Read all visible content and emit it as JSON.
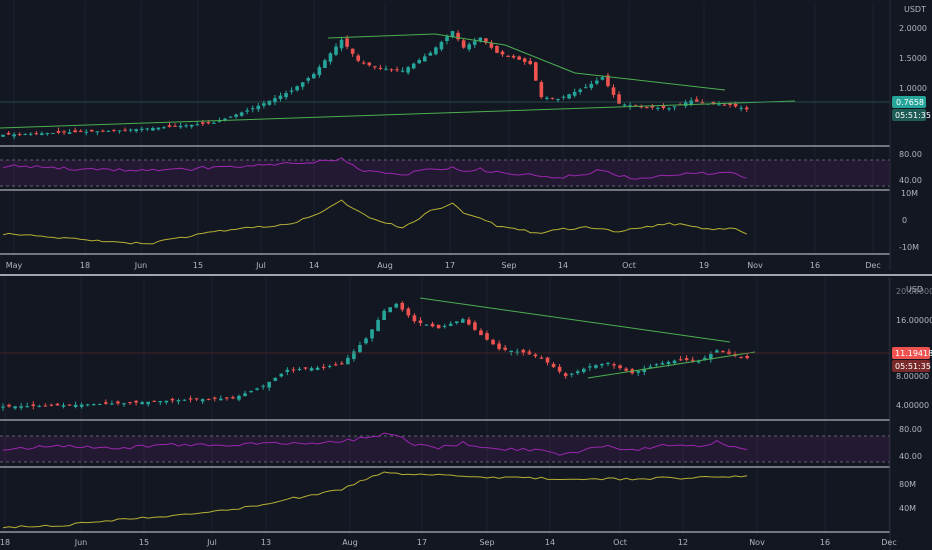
{
  "colors": {
    "background": "#131722",
    "up": "#26a69a",
    "down": "#ef5350",
    "trendline": "#4caf50",
    "rsi": "#9c27b0",
    "obv": "#b7b034",
    "divider": "#d1d4dc"
  },
  "chart_data": [
    {
      "type": "candlestick",
      "title": "",
      "currency": "USDT",
      "y_ticks": [
        "2.0000",
        "1.5000",
        "1.0000"
      ],
      "x_ticks": [
        "May",
        "18",
        "Jun",
        "15",
        "Jul",
        "14",
        "Aug",
        "17",
        "Sep",
        "14",
        "Oct",
        "19",
        "Nov",
        "16",
        "Dec"
      ],
      "last_price": "0.7658",
      "countdown": "05:51:35",
      "ylim": [
        0.3,
        2.3
      ],
      "close_path": [
        [
          0,
          0.38
        ],
        [
          10,
          0.41
        ],
        [
          20,
          0.44
        ],
        [
          30,
          0.5
        ],
        [
          38,
          0.56
        ],
        [
          45,
          0.78
        ],
        [
          52,
          1.05
        ],
        [
          56,
          1.3
        ],
        [
          61,
          1.82
        ],
        [
          64,
          1.5
        ],
        [
          67,
          1.4
        ],
        [
          72,
          1.35
        ],
        [
          77,
          1.62
        ],
        [
          81,
          1.95
        ],
        [
          83,
          1.7
        ],
        [
          86,
          1.85
        ],
        [
          89,
          1.62
        ],
        [
          92,
          1.55
        ],
        [
          95,
          1.45
        ],
        [
          97,
          0.95
        ],
        [
          100,
          0.92
        ],
        [
          105,
          1.1
        ],
        [
          108,
          1.25
        ],
        [
          111,
          0.85
        ],
        [
          115,
          0.8
        ],
        [
          120,
          0.78
        ],
        [
          124,
          0.9
        ],
        [
          127,
          0.85
        ],
        [
          131,
          0.83
        ],
        [
          134,
          0.7658
        ]
      ],
      "rsi": {
        "y_ticks": [
          "80.00",
          "40.00"
        ],
        "band": [
          30,
          70
        ],
        "path": [
          [
            0,
            62
          ],
          [
            10,
            58
          ],
          [
            20,
            55
          ],
          [
            30,
            54
          ],
          [
            38,
            60
          ],
          [
            45,
            62
          ],
          [
            52,
            66
          ],
          [
            56,
            68
          ],
          [
            61,
            75
          ],
          [
            64,
            55
          ],
          [
            67,
            50
          ],
          [
            72,
            47
          ],
          [
            77,
            55
          ],
          [
            81,
            60
          ],
          [
            83,
            52
          ],
          [
            86,
            57
          ],
          [
            89,
            50
          ],
          [
            92,
            48
          ],
          [
            95,
            46
          ],
          [
            97,
            42
          ],
          [
            100,
            41
          ],
          [
            105,
            48
          ],
          [
            108,
            55
          ],
          [
            111,
            43
          ],
          [
            115,
            41
          ],
          [
            120,
            44
          ],
          [
            124,
            52
          ],
          [
            127,
            49
          ],
          [
            131,
            50
          ],
          [
            134,
            42
          ]
        ]
      },
      "obv": {
        "y_ticks": [
          "10M",
          "0",
          "-10M"
        ],
        "path": [
          [
            0,
            -5
          ],
          [
            10,
            -7
          ],
          [
            20,
            -9
          ],
          [
            26,
            -10
          ],
          [
            30,
            -8
          ],
          [
            38,
            -4
          ],
          [
            45,
            -2
          ],
          [
            52,
            0
          ],
          [
            56,
            4
          ],
          [
            61,
            11
          ],
          [
            64,
            6
          ],
          [
            67,
            2
          ],
          [
            72,
            -2
          ],
          [
            77,
            6
          ],
          [
            81,
            10
          ],
          [
            83,
            5
          ],
          [
            86,
            3
          ],
          [
            89,
            -1
          ],
          [
            92,
            -2
          ],
          [
            95,
            -4
          ],
          [
            97,
            -5
          ],
          [
            100,
            -3
          ],
          [
            105,
            -2
          ],
          [
            108,
            -3
          ],
          [
            111,
            -4
          ],
          [
            115,
            -2
          ],
          [
            120,
            0
          ],
          [
            124,
            -1
          ],
          [
            127,
            -3
          ],
          [
            131,
            -2
          ],
          [
            134,
            -5
          ]
        ]
      }
    },
    {
      "type": "candlestick",
      "title": "",
      "currency": "USD",
      "y_ticks": [
        "20.00000",
        "16.00000",
        "12.00000",
        "8.00000",
        "4.00000"
      ],
      "x_ticks": [
        "18",
        "Jun",
        "15",
        "Jul",
        "13",
        "Aug",
        "17",
        "Sep",
        "14",
        "Oct",
        "12",
        "Nov",
        "16",
        "Dec"
      ],
      "last_price": "11.19418",
      "countdown": "05:51:35",
      "ylim": [
        3.0,
        22.0
      ],
      "close_path": [
        [
          0,
          4.2
        ],
        [
          10,
          4.4
        ],
        [
          20,
          4.7
        ],
        [
          30,
          5.2
        ],
        [
          38,
          5.4
        ],
        [
          43,
          7.2
        ],
        [
          47,
          9.5
        ],
        [
          52,
          9.8
        ],
        [
          56,
          10.3
        ],
        [
          60,
          14.0
        ],
        [
          63,
          18.0
        ],
        [
          65,
          19.0
        ],
        [
          68,
          16.5
        ],
        [
          72,
          15.5
        ],
        [
          76,
          16.8
        ],
        [
          79,
          14.5
        ],
        [
          82,
          12.5
        ],
        [
          86,
          12.0
        ],
        [
          89,
          11.2
        ],
        [
          93,
          8.6
        ],
        [
          97,
          10.0
        ],
        [
          100,
          10.5
        ],
        [
          104,
          9.0
        ],
        [
          108,
          10.3
        ],
        [
          112,
          11.0
        ],
        [
          115,
          10.7
        ],
        [
          118,
          12.3
        ],
        [
          121,
          11.5
        ],
        [
          123,
          11.19418
        ]
      ],
      "rsi": {
        "y_ticks": [
          "80.00",
          "40.00"
        ],
        "band": [
          30,
          70
        ],
        "path": [
          [
            0,
            50
          ],
          [
            10,
            55
          ],
          [
            20,
            52
          ],
          [
            30,
            58
          ],
          [
            38,
            54
          ],
          [
            43,
            62
          ],
          [
            47,
            58
          ],
          [
            52,
            60
          ],
          [
            56,
            63
          ],
          [
            60,
            70
          ],
          [
            63,
            76
          ],
          [
            65,
            72
          ],
          [
            68,
            58
          ],
          [
            72,
            52
          ],
          [
            76,
            60
          ],
          [
            79,
            52
          ],
          [
            82,
            48
          ],
          [
            86,
            50
          ],
          [
            89,
            47
          ],
          [
            93,
            40
          ],
          [
            97,
            52
          ],
          [
            100,
            54
          ],
          [
            104,
            48
          ],
          [
            108,
            55
          ],
          [
            112,
            57
          ],
          [
            115,
            54
          ],
          [
            118,
            62
          ],
          [
            121,
            52
          ],
          [
            123,
            49
          ]
        ]
      },
      "obv": {
        "y_ticks": [
          "80M",
          "40M"
        ],
        "path": [
          [
            0,
            18
          ],
          [
            10,
            22
          ],
          [
            20,
            30
          ],
          [
            30,
            36
          ],
          [
            38,
            44
          ],
          [
            43,
            50
          ],
          [
            47,
            58
          ],
          [
            52,
            64
          ],
          [
            56,
            72
          ],
          [
            60,
            86
          ],
          [
            63,
            94
          ],
          [
            65,
            93
          ],
          [
            68,
            91
          ],
          [
            72,
            92
          ],
          [
            76,
            90
          ],
          [
            79,
            88
          ],
          [
            82,
            87
          ],
          [
            86,
            88
          ],
          [
            89,
            87
          ],
          [
            93,
            85
          ],
          [
            97,
            86
          ],
          [
            100,
            86
          ],
          [
            104,
            86
          ],
          [
            108,
            87
          ],
          [
            112,
            87
          ],
          [
            115,
            88
          ],
          [
            118,
            89
          ],
          [
            121,
            90
          ],
          [
            123,
            89
          ]
        ]
      }
    }
  ]
}
